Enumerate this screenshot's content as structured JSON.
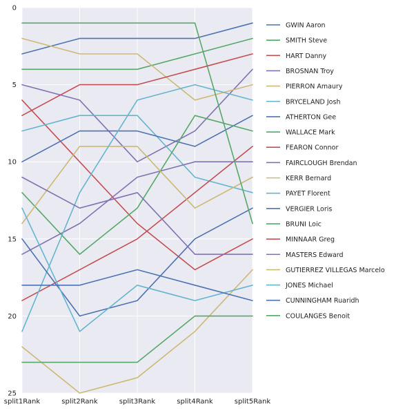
{
  "chart_data": {
    "type": "line",
    "x": [
      "split1Rank",
      "split2Rank",
      "split3Rank",
      "split4Rank",
      "split5Rank"
    ],
    "ylim": [
      25,
      0
    ],
    "yticks": [
      0,
      5,
      10,
      15,
      20,
      25
    ],
    "grid": true,
    "legend_position": "right",
    "series": [
      {
        "name": "GWIN Aaron",
        "color": "#4C72B0",
        "values": [
          3,
          2,
          2,
          2,
          1
        ]
      },
      {
        "name": "SMITH Steve",
        "color": "#55A868",
        "values": [
          4,
          4,
          4,
          3,
          2
        ]
      },
      {
        "name": "HART Danny",
        "color": "#C44E52",
        "values": [
          6,
          10,
          14,
          17,
          15
        ]
      },
      {
        "name": "BROSNAN Troy",
        "color": "#8172B2",
        "values": [
          5,
          6,
          10,
          8,
          4
        ]
      },
      {
        "name": "PIERRON Amaury",
        "color": "#CCB974",
        "values": [
          2,
          3,
          3,
          6,
          5
        ]
      },
      {
        "name": "BRYCELAND Josh",
        "color": "#64B5CD",
        "values": [
          8,
          7,
          7,
          11,
          12
        ]
      },
      {
        "name": "ATHERTON Gee",
        "color": "#4C72B0",
        "values": [
          10,
          8,
          8,
          9,
          7
        ]
      },
      {
        "name": "WALLACE Mark",
        "color": "#55A868",
        "values": [
          12,
          16,
          13,
          7,
          8
        ]
      },
      {
        "name": "FEARON Connor",
        "color": "#C44E52",
        "values": [
          19,
          17,
          15,
          12,
          9
        ]
      },
      {
        "name": "FAIRCLOUGH Brendan",
        "color": "#8172B2",
        "values": [
          16,
          14,
          11,
          10,
          10
        ]
      },
      {
        "name": "KERR Bernard",
        "color": "#CCB974",
        "values": [
          14,
          9,
          9,
          13,
          11
        ]
      },
      {
        "name": "PAYET Florent",
        "color": "#64B5CD",
        "values": [
          21,
          12,
          6,
          5,
          6
        ]
      },
      {
        "name": "VERGIER Loris",
        "color": "#4C72B0",
        "values": [
          15,
          20,
          19,
          15,
          13
        ]
      },
      {
        "name": "BRUNI Loic",
        "color": "#55A868",
        "values": [
          1,
          1,
          1,
          1,
          14
        ]
      },
      {
        "name": "MINNAAR Greg",
        "color": "#C44E52",
        "values": [
          7,
          5,
          5,
          4,
          3
        ]
      },
      {
        "name": "MASTERS Edward",
        "color": "#8172B2",
        "values": [
          11,
          13,
          12,
          16,
          16
        ]
      },
      {
        "name": "GUTIERREZ VILLEGAS Marcelo",
        "color": "#CCB974",
        "values": [
          22,
          25,
          24,
          21,
          17
        ]
      },
      {
        "name": "JONES Michael",
        "color": "#64B5CD",
        "values": [
          13,
          21,
          18,
          19,
          18
        ]
      },
      {
        "name": "CUNNINGHAM Ruaridh",
        "color": "#4C72B0",
        "values": [
          18,
          18,
          17,
          18,
          19
        ]
      },
      {
        "name": "COULANGES Benoit",
        "color": "#55A868",
        "values": [
          23,
          23,
          23,
          20,
          20
        ]
      }
    ]
  }
}
